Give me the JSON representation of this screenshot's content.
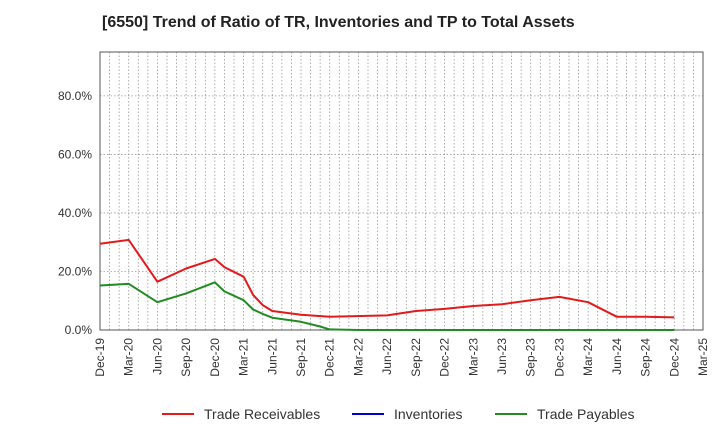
{
  "chart_data": {
    "type": "line",
    "title": "[6550]  Trend of Ratio of TR, Inventories and TP to Total Assets",
    "xlabel": "",
    "ylabel": "",
    "x_ticks": [
      "Dec-19",
      "Mar-20",
      "Jun-20",
      "Sep-20",
      "Dec-20",
      "Mar-21",
      "Jun-21",
      "Sep-21",
      "Dec-21",
      "Mar-22",
      "Jun-22",
      "Sep-22",
      "Dec-22",
      "Mar-23",
      "Jun-23",
      "Sep-23",
      "Dec-23",
      "Mar-24",
      "Jun-24",
      "Sep-24",
      "Dec-24",
      "Mar-25"
    ],
    "y_ticks": [
      "0.0%",
      "20.0%",
      "40.0%",
      "60.0%",
      "80.0%"
    ],
    "ylim": [
      0,
      95
    ],
    "grid": true,
    "legend_position": "bottom",
    "series": [
      {
        "name": "Trade Receivables",
        "color": "#e31a1c",
        "points": [
          [
            "Dec-19",
            29.5
          ],
          [
            "Mar-20",
            30.8
          ],
          [
            "Jun-20",
            16.5
          ],
          [
            "Jul-20",
            18.0
          ],
          [
            "Sep-20",
            21.0
          ],
          [
            "Dec-20",
            24.3
          ],
          [
            "Jan-21",
            21.5
          ],
          [
            "Mar-21",
            18.2
          ],
          [
            "Apr-21",
            12.0
          ],
          [
            "May-21",
            8.5
          ],
          [
            "Jun-21",
            6.5
          ],
          [
            "Sep-21",
            5.2
          ],
          [
            "Dec-21",
            4.5
          ],
          [
            "Jun-22",
            5.0
          ],
          [
            "Sep-22",
            6.5
          ],
          [
            "Dec-22",
            7.2
          ],
          [
            "Mar-23",
            8.2
          ],
          [
            "Jun-23",
            8.8
          ],
          [
            "Sep-23",
            10.2
          ],
          [
            "Dec-23",
            11.3
          ],
          [
            "Mar-24",
            9.5
          ],
          [
            "Jun-24",
            4.5
          ],
          [
            "Sep-24",
            4.5
          ],
          [
            "Dec-24",
            4.3
          ]
        ]
      },
      {
        "name": "Inventories",
        "color": "#0000cc",
        "points": []
      },
      {
        "name": "Trade Payables",
        "color": "#228b22",
        "points": [
          [
            "Dec-19",
            15.2
          ],
          [
            "Mar-20",
            15.8
          ],
          [
            "Jun-20",
            9.5
          ],
          [
            "Sep-20",
            12.5
          ],
          [
            "Dec-20",
            16.3
          ],
          [
            "Jan-21",
            13.2
          ],
          [
            "Mar-21",
            10.2
          ],
          [
            "Apr-21",
            7.0
          ],
          [
            "May-21",
            5.5
          ],
          [
            "Jun-21",
            4.2
          ],
          [
            "Sep-21",
            2.8
          ],
          [
            "Nov-21",
            1.2
          ],
          [
            "Dec-21",
            0.2
          ],
          [
            "Mar-22",
            0.0
          ],
          [
            "Dec-24",
            0.0
          ]
        ]
      }
    ]
  }
}
